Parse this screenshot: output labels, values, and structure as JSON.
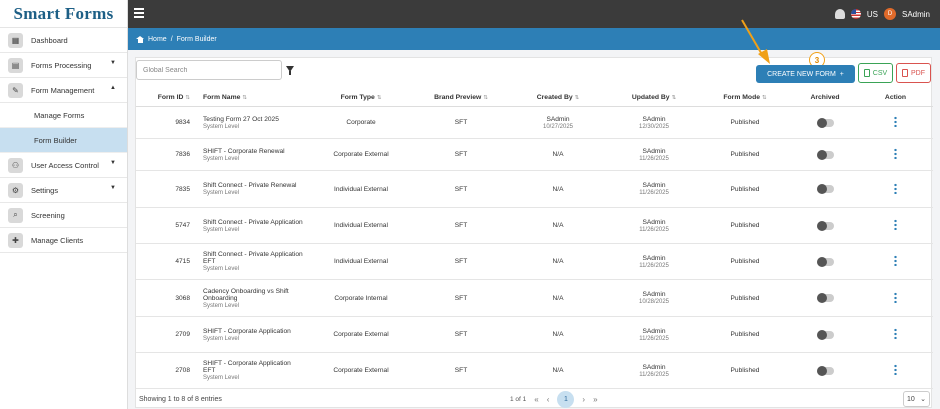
{
  "app": {
    "logo_text": "Smart Forms"
  },
  "sidebar": {
    "items": [
      {
        "label": "Dashboard",
        "icon": "dashboard-icon",
        "caret": ""
      },
      {
        "label": "Forms Processing",
        "icon": "document-icon",
        "caret": "▼"
      },
      {
        "label": "Form Management",
        "icon": "form-edit-icon",
        "caret": "▲"
      },
      {
        "label": "Manage Forms"
      },
      {
        "label": "Form Builder"
      },
      {
        "label": "User Access Control",
        "icon": "users-icon",
        "caret": "▼"
      },
      {
        "label": "Settings",
        "icon": "gear-icon",
        "caret": "▼"
      },
      {
        "label": "Screening",
        "icon": "search-icon",
        "caret": ""
      },
      {
        "label": "Manage Clients",
        "icon": "add-user-icon",
        "caret": ""
      }
    ]
  },
  "topbar": {
    "region": "US",
    "user_initial": "D",
    "user_name": "SAdmin"
  },
  "breadcrumb": {
    "home": "Home",
    "separator": "/",
    "current": "Form Builder"
  },
  "toolbar": {
    "search_placeholder": "Global Search",
    "create_label": "CREATE NEW FORM",
    "create_plus": "+",
    "csv_label": "CSV",
    "pdf_label": "PDF",
    "step_badge": "3"
  },
  "table": {
    "headers": {
      "id": "Form ID",
      "name": "Form Name",
      "type": "Form Type",
      "brand": "Brand Preview",
      "created": "Created By",
      "updated": "Updated By",
      "mode": "Form Mode",
      "archived": "Archived",
      "action": "Action"
    },
    "rows": [
      {
        "id": "9834",
        "name": "Testing Form 27 Oct 2025",
        "level": "System Level",
        "type": "Corporate",
        "brand": "SFT",
        "created_by": "SAdmin",
        "created_date": "10/27/2025",
        "updated_by": "SAdmin",
        "updated_date": "12/30/2025",
        "mode": "Published"
      },
      {
        "id": "7836",
        "name": "SHIFT - Corporate Renewal",
        "level": "System Level",
        "type": "Corporate External",
        "brand": "SFT",
        "created_by": "N/A",
        "created_date": "",
        "updated_by": "SAdmin",
        "updated_date": "11/26/2025",
        "mode": "Published"
      },
      {
        "id": "7835",
        "name": "Shift Connect - Private Renewal",
        "level": "System Level",
        "type": "Individual External",
        "brand": "SFT",
        "created_by": "N/A",
        "created_date": "",
        "updated_by": "SAdmin",
        "updated_date": "11/26/2025",
        "mode": "Published"
      },
      {
        "id": "5747",
        "name": "Shift Connect - Private Application",
        "level": "System Level",
        "type": "Individual External",
        "brand": "SFT",
        "created_by": "N/A",
        "created_date": "",
        "updated_by": "SAdmin",
        "updated_date": "11/26/2025",
        "mode": "Published"
      },
      {
        "id": "4715",
        "name": "Shift Connect - Private Application EFT",
        "level": "System Level",
        "type": "Individual External",
        "brand": "SFT",
        "created_by": "N/A",
        "created_date": "",
        "updated_by": "SAdmin",
        "updated_date": "11/26/2025",
        "mode": "Published"
      },
      {
        "id": "3068",
        "name": "Cadency Onboarding vs Shift Onboarding",
        "level": "System Level",
        "type": "Corporate Internal",
        "brand": "SFT",
        "created_by": "N/A",
        "created_date": "",
        "updated_by": "SAdmin",
        "updated_date": "10/28/2025",
        "mode": "Published"
      },
      {
        "id": "2709",
        "name": "SHIFT - Corporate Application",
        "level": "System Level",
        "type": "Corporate External",
        "brand": "SFT",
        "created_by": "N/A",
        "created_date": "",
        "updated_by": "SAdmin",
        "updated_date": "11/26/2025",
        "mode": "Published"
      },
      {
        "id": "2708",
        "name": "SHIFT - Corporate Application EFT",
        "level": "System Level",
        "type": "Corporate External",
        "brand": "SFT",
        "created_by": "N/A",
        "created_date": "",
        "updated_by": "SAdmin",
        "updated_date": "11/26/2025",
        "mode": "Published"
      }
    ]
  },
  "footer": {
    "summary": "Showing 1 to 8 of 8 entries",
    "page_info": "1 of 1",
    "current_page": "1",
    "page_size": "10"
  },
  "colors": {
    "brand_blue": "#2d7fb6",
    "logo_blue": "#1d5f86",
    "topbar": "#3b3b3b",
    "annotation_orange": "#f0a018"
  }
}
